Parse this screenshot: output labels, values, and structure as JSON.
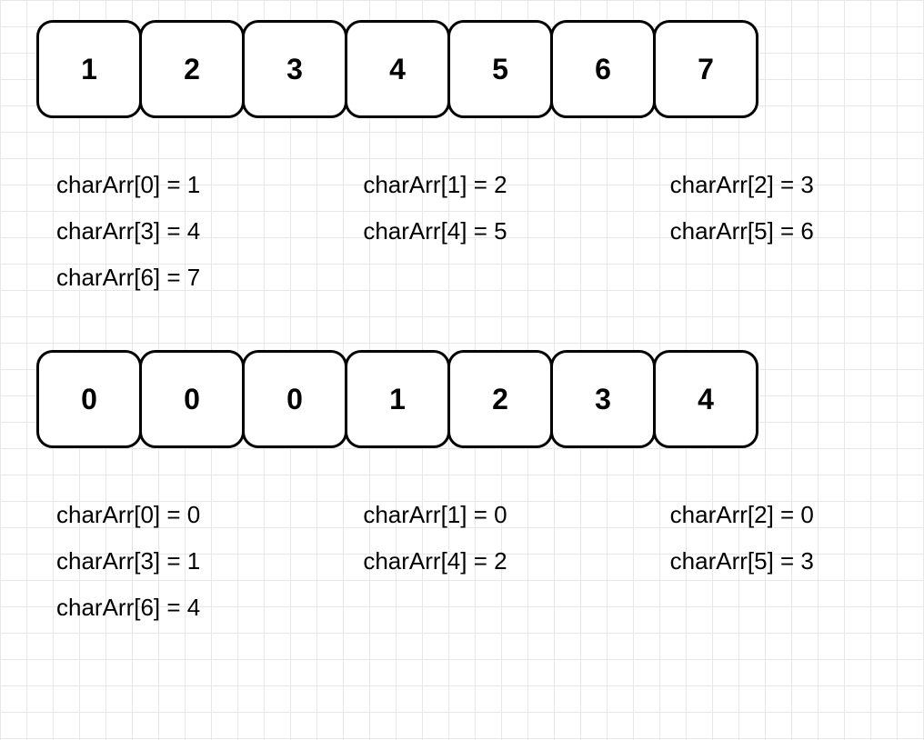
{
  "background": {
    "grid_color": "#e8e8e8",
    "grid_size": 29,
    "page_bg": "#ffffff"
  },
  "cell_style": {
    "width": 116,
    "height": 108,
    "border_color": "#000000",
    "border_width": 3,
    "border_radius": 18,
    "bg_color": "#ffffff",
    "font_size": 32,
    "font_weight": "bold",
    "text_color": "#000000"
  },
  "label_style": {
    "font_size": 26,
    "text_color": "#000000"
  },
  "section1": {
    "array_values": [
      "1",
      "2",
      "3",
      "4",
      "5",
      "6",
      "7"
    ],
    "labels": [
      "charArr[0] = 1",
      "charArr[1] = 2",
      "charArr[2] = 3",
      "charArr[3] = 4",
      "charArr[4] = 5",
      "charArr[5] = 6",
      "charArr[6] = 7"
    ]
  },
  "section2": {
    "array_values": [
      "0",
      "0",
      "0",
      "1",
      "2",
      "3",
      "4"
    ],
    "labels": [
      "charArr[0] = 0",
      "charArr[1] = 0",
      "charArr[2] = 0",
      "charArr[3] = 1",
      "charArr[4] = 2",
      "charArr[5] = 3",
      "charArr[6] = 4"
    ]
  }
}
